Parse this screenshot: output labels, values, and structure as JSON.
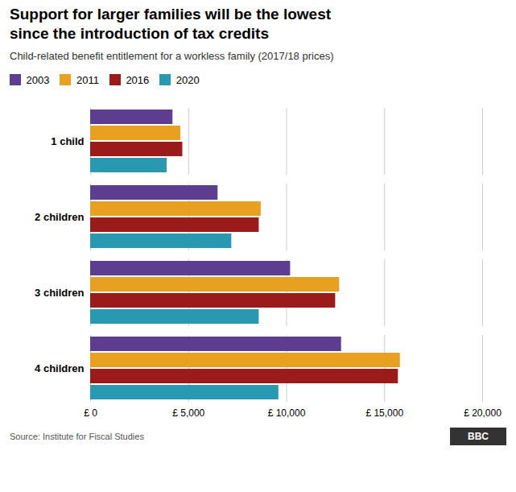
{
  "chart_data": {
    "type": "bar",
    "orientation": "horizontal",
    "title": "Support for larger families will be the lowest\nsince the introduction of tax credits",
    "subtitle": "Child-related benefit entitlement for a workless family (2017/18 prices)",
    "annotations": [
      "Source: Institute for Fiscal Studies",
      "BBC"
    ],
    "categories": [
      "1 child",
      "2 children",
      "3 children",
      "4 children"
    ],
    "series": [
      {
        "name": "2003",
        "color": "#5c3d8f",
        "values": [
          4200,
          6500,
          10200,
          12800
        ]
      },
      {
        "name": "2011",
        "color": "#e8a020",
        "values": [
          4600,
          8700,
          12700,
          15800
        ]
      },
      {
        "name": "2016",
        "color": "#9b1a1a",
        "values": [
          4700,
          8600,
          12500,
          15700
        ]
      },
      {
        "name": "2020",
        "color": "#2899b0",
        "values": [
          3900,
          7200,
          8600,
          9600
        ]
      }
    ],
    "xlim": [
      0,
      20000
    ],
    "xticks": [
      {
        "value": 0,
        "label": "£ 0"
      },
      {
        "value": 5000,
        "label": "£ 5,000"
      },
      {
        "value": 10000,
        "label": "£ 10,000"
      },
      {
        "value": 15000,
        "label": "£ 15,000"
      },
      {
        "value": 20000,
        "label": "£ 20,000"
      }
    ],
    "grid": true,
    "legend": "upper left"
  }
}
